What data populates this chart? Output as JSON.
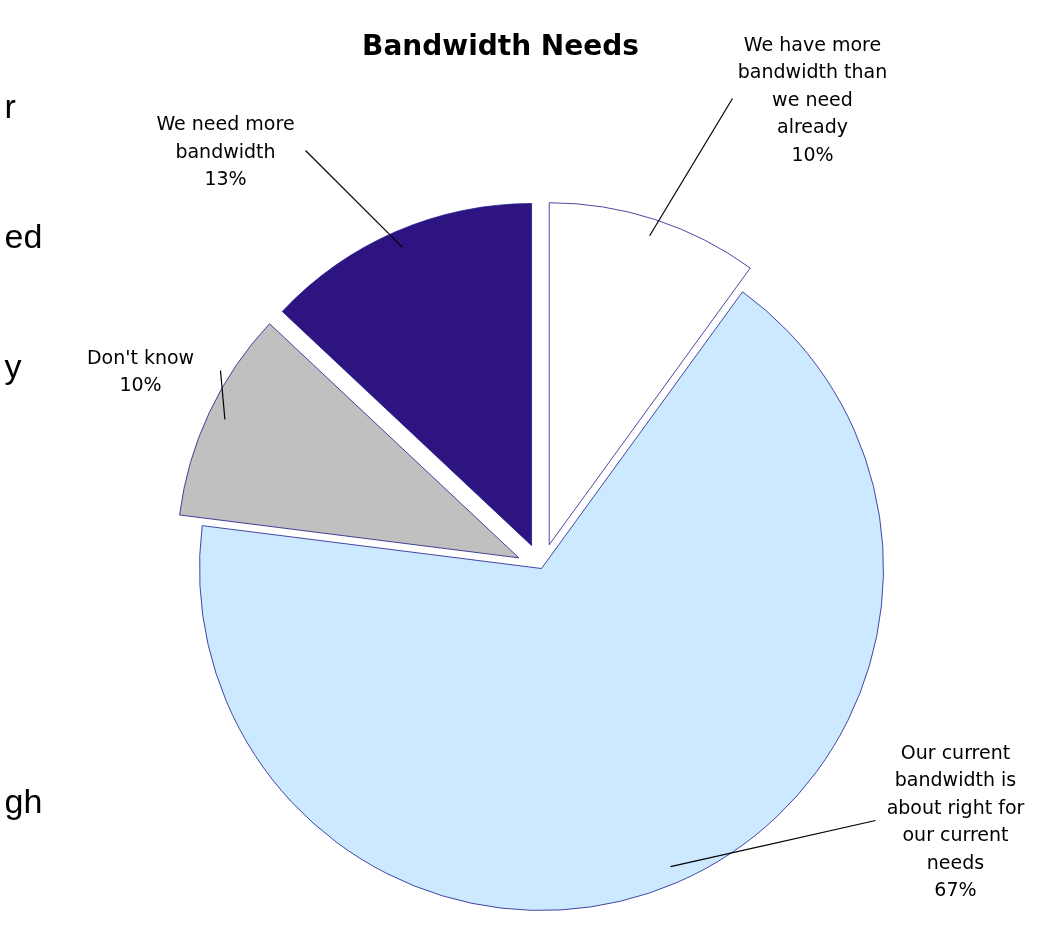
{
  "chart_data": {
    "type": "pie",
    "title": "Bandwidth Needs",
    "categories": [
      "We have more bandwidth than we need already",
      "Our current bandwidth is about right for our current needs",
      "Don't know",
      "We need more bandwidth"
    ],
    "values": [
      10,
      67,
      10,
      13
    ],
    "value_labels": [
      "10%",
      "67%",
      "10%",
      "13%"
    ],
    "colors": [
      "#ffffff",
      "#cce9ff",
      "#c0c0c0",
      "#2e1480"
    ],
    "annotations": [
      "r",
      "ed",
      "y",
      "gh"
    ]
  }
}
